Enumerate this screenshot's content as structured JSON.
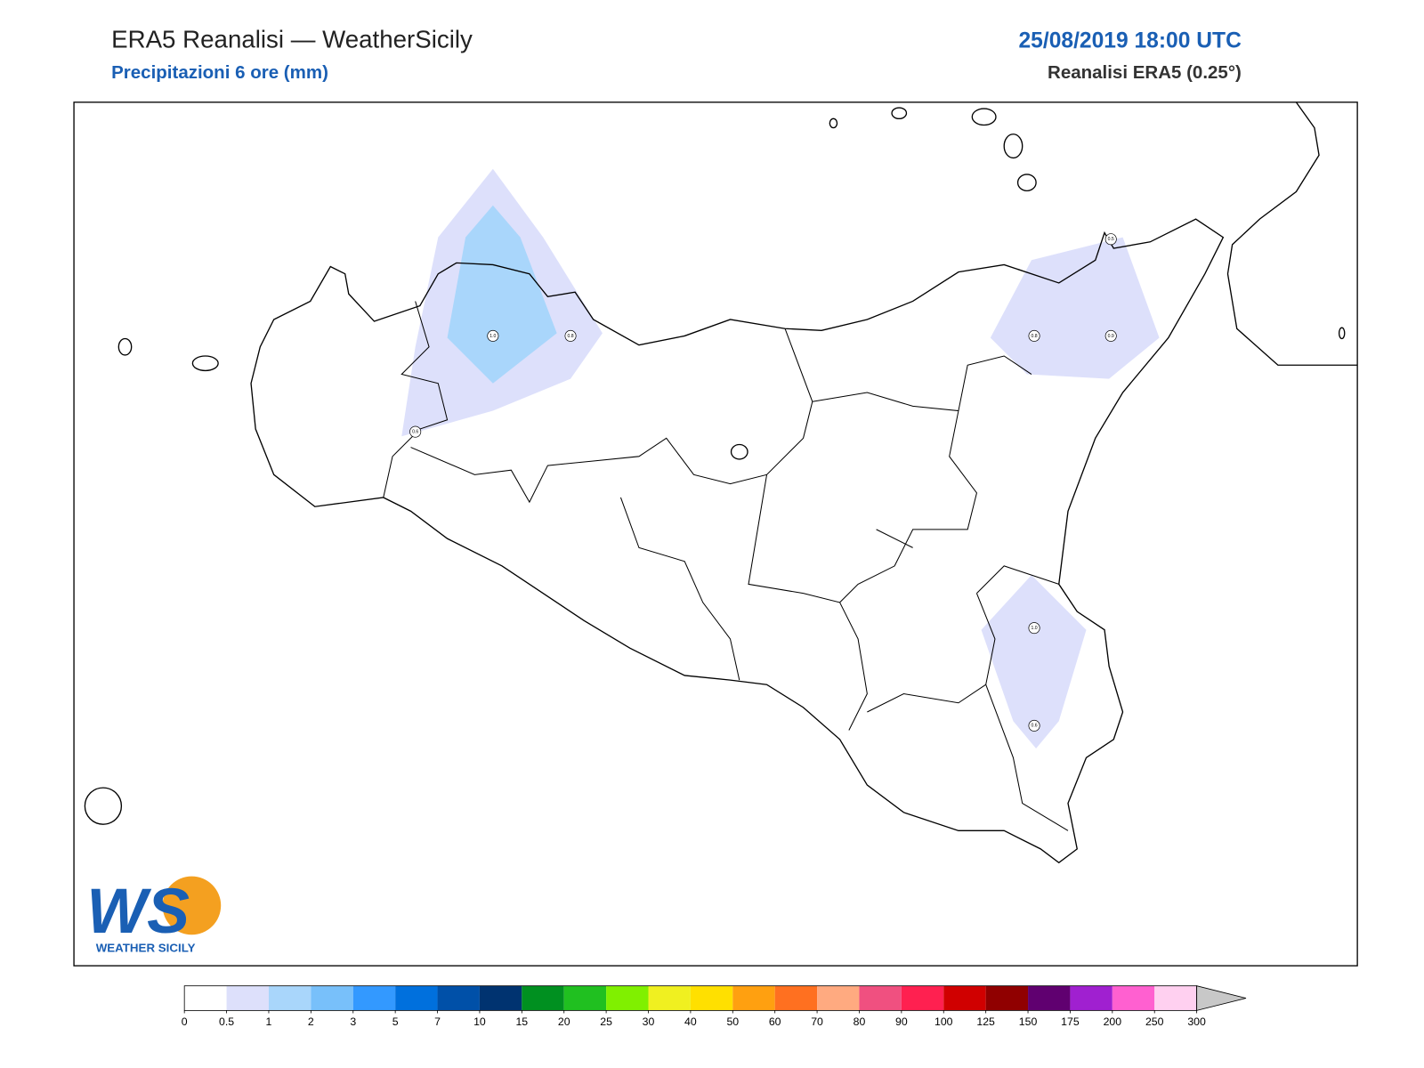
{
  "header": {
    "title": "ERA5 Reanalisi — WeatherSicily",
    "subtitle": "Precipitazioni 6 ore (mm)",
    "date": "25/08/2019 18:00 UTC",
    "source": "Reanalisi ERA5 (0.25°)"
  },
  "map": {
    "point_labels": [
      "1.0",
      "0.8",
      "0.6",
      "0.5",
      "0.8",
      "0.9",
      "1.0",
      "0.6"
    ]
  },
  "logo": {
    "mark": "WS",
    "text": "WEATHER SICILY"
  },
  "colorbar": {
    "ticks": [
      0,
      0.5,
      1,
      2,
      3,
      5,
      7,
      10,
      15,
      20,
      25,
      30,
      40,
      50,
      60,
      70,
      80,
      90,
      100,
      125,
      150,
      175,
      200,
      250,
      300
    ],
    "colors": [
      "#ffffff",
      "#dde0fb",
      "#a9d6fb",
      "#78c0fa",
      "#3399ff",
      "#0070dd",
      "#0050a8",
      "#003370",
      "#009020",
      "#20c020",
      "#80f000",
      "#f0f020",
      "#ffe000",
      "#ffa010",
      "#ff7020",
      "#ffaa80",
      "#f05080",
      "#ff2050",
      "#d00000",
      "#900000",
      "#600070",
      "#a020d0",
      "#ff60d0",
      "#ffd0f0"
    ],
    "extend_color": "#c8c8c8"
  }
}
